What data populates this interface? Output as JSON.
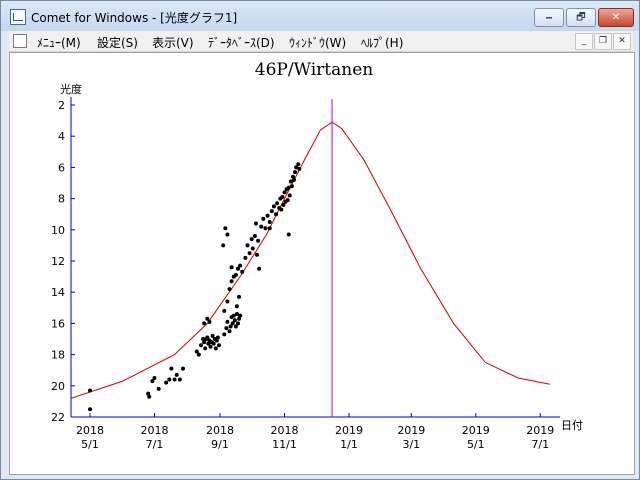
{
  "window": {
    "title": "Comet for Windows - [光度グラフ1]",
    "buttons": {
      "minimize": "🗕",
      "maximize": "🗗",
      "close": "✕"
    }
  },
  "menu": {
    "items": [
      "ﾒﾆｭｰ(M)",
      "設定(S)",
      "表示(V)",
      "ﾃﾞｰﾀﾍﾞｰｽ(D)",
      "ｳｨﾝﾄﾞｳ(W)",
      "ﾍﾙﾌﾟ(H)"
    ],
    "mdi_buttons": {
      "minimize": "_",
      "restore": "❐",
      "close": "✕"
    }
  },
  "colors": {
    "curve": "#cc0000",
    "vline": "#cc00cc",
    "axis": "#0000cc",
    "points": "#000000"
  },
  "chart_data": {
    "type": "scatter",
    "title": "46P/Wirtanen",
    "ylabel": "光度",
    "xlabel": "日付",
    "y_inverted": true,
    "ylim": [
      2,
      22
    ],
    "yticks": [
      2,
      4,
      6,
      8,
      10,
      12,
      14,
      16,
      18,
      20,
      22
    ],
    "xlim": [
      "2018-04-13",
      "2019-07-14"
    ],
    "xticks": [
      {
        "date": "2018-05-01",
        "year": "2018",
        "md": "5/1"
      },
      {
        "date": "2018-07-01",
        "year": "2018",
        "md": "7/1"
      },
      {
        "date": "2018-09-01",
        "year": "2018",
        "md": "9/1"
      },
      {
        "date": "2018-11-01",
        "year": "2018",
        "md": "11/1"
      },
      {
        "date": "2019-01-01",
        "year": "2019",
        "md": "1/1"
      },
      {
        "date": "2019-03-01",
        "year": "2019",
        "md": "3/1"
      },
      {
        "date": "2019-05-01",
        "year": "2019",
        "md": "5/1"
      },
      {
        "date": "2019-07-01",
        "year": "2019",
        "md": "7/1"
      }
    ],
    "marker_date": "2018-12-16",
    "grid": false,
    "predicted_curve": [
      [
        "2018-04-13",
        20.8
      ],
      [
        "2018-06-01",
        19.7
      ],
      [
        "2018-07-20",
        18.0
      ],
      [
        "2018-08-20",
        16.0
      ],
      [
        "2018-09-20",
        13.0
      ],
      [
        "2018-10-15",
        10.3
      ],
      [
        "2018-11-01",
        8.0
      ],
      [
        "2018-11-20",
        5.5
      ],
      [
        "2018-12-05",
        3.6
      ],
      [
        "2018-12-16",
        3.1
      ],
      [
        "2018-12-25",
        3.5
      ],
      [
        "2019-01-15",
        5.5
      ],
      [
        "2019-02-10",
        8.8
      ],
      [
        "2019-03-10",
        12.5
      ],
      [
        "2019-04-10",
        16.0
      ],
      [
        "2019-05-10",
        18.5
      ],
      [
        "2019-06-10",
        19.5
      ],
      [
        "2019-07-10",
        19.9
      ]
    ],
    "observations": [
      [
        "2018-05-01",
        20.3
      ],
      [
        "2018-05-01",
        21.5
      ],
      [
        "2018-06-25",
        20.5
      ],
      [
        "2018-06-26",
        20.7
      ],
      [
        "2018-06-29",
        19.7
      ],
      [
        "2018-07-01",
        19.5
      ],
      [
        "2018-07-05",
        20.2
      ],
      [
        "2018-07-12",
        19.8
      ],
      [
        "2018-07-15",
        19.6
      ],
      [
        "2018-07-17",
        18.9
      ],
      [
        "2018-07-20",
        19.6
      ],
      [
        "2018-07-22",
        19.3
      ],
      [
        "2018-07-25",
        19.6
      ],
      [
        "2018-07-28",
        18.9
      ],
      [
        "2018-08-10",
        17.8
      ],
      [
        "2018-08-12",
        18.0
      ],
      [
        "2018-08-14",
        17.4
      ],
      [
        "2018-08-16",
        17.0
      ],
      [
        "2018-08-17",
        17.2
      ],
      [
        "2018-08-18",
        17.6
      ],
      [
        "2018-08-19",
        17.0
      ],
      [
        "2018-08-20",
        16.9
      ],
      [
        "2018-08-21",
        17.3
      ],
      [
        "2018-08-22",
        17.1
      ],
      [
        "2018-08-23",
        17.5
      ],
      [
        "2018-08-24",
        17.2
      ],
      [
        "2018-08-25",
        16.8
      ],
      [
        "2018-08-26",
        17.3
      ],
      [
        "2018-08-27",
        17.0
      ],
      [
        "2018-08-28",
        17.6
      ],
      [
        "2018-08-29",
        17.1
      ],
      [
        "2018-08-30",
        16.9
      ],
      [
        "2018-08-31",
        17.4
      ],
      [
        "2018-08-17",
        16.0
      ],
      [
        "2018-08-20",
        15.7
      ],
      [
        "2018-08-22",
        15.9
      ],
      [
        "2018-09-05",
        16.7
      ],
      [
        "2018-09-07",
        16.3
      ],
      [
        "2018-09-08",
        15.9
      ],
      [
        "2018-09-10",
        16.5
      ],
      [
        "2018-09-11",
        16.2
      ],
      [
        "2018-09-12",
        15.6
      ],
      [
        "2018-09-13",
        16.0
      ],
      [
        "2018-09-14",
        15.5
      ],
      [
        "2018-09-15",
        15.8
      ],
      [
        "2018-09-16",
        16.2
      ],
      [
        "2018-09-17",
        15.4
      ],
      [
        "2018-09-18",
        16.0
      ],
      [
        "2018-09-19",
        15.7
      ],
      [
        "2018-09-20",
        15.5
      ],
      [
        "2018-09-05",
        15.2
      ],
      [
        "2018-09-08",
        14.6
      ],
      [
        "2018-09-10",
        13.8
      ],
      [
        "2018-09-12",
        13.3
      ],
      [
        "2018-09-14",
        13.0
      ],
      [
        "2018-09-16",
        12.9
      ],
      [
        "2018-09-18",
        12.5
      ],
      [
        "2018-09-20",
        12.3
      ],
      [
        "2018-09-22",
        12.7
      ],
      [
        "2018-09-19",
        14.3
      ],
      [
        "2018-09-17",
        14.9
      ],
      [
        "2018-09-04",
        11.0
      ],
      [
        "2018-09-06",
        9.9
      ],
      [
        "2018-09-08",
        10.3
      ],
      [
        "2018-09-12",
        12.4
      ],
      [
        "2018-09-25",
        11.8
      ],
      [
        "2018-09-27",
        11.0
      ],
      [
        "2018-09-29",
        11.5
      ],
      [
        "2018-10-01",
        10.6
      ],
      [
        "2018-10-02",
        11.2
      ],
      [
        "2018-10-04",
        10.4
      ],
      [
        "2018-10-06",
        11.6
      ],
      [
        "2018-10-07",
        10.7
      ],
      [
        "2018-10-08",
        12.5
      ],
      [
        "2018-10-10",
        9.8
      ],
      [
        "2018-10-12",
        9.3
      ],
      [
        "2018-10-14",
        9.9
      ],
      [
        "2018-10-16",
        9.1
      ],
      [
        "2018-10-18",
        9.5
      ],
      [
        "2018-10-20",
        8.8
      ],
      [
        "2018-10-22",
        8.5
      ],
      [
        "2018-10-24",
        9.0
      ],
      [
        "2018-10-25",
        8.3
      ],
      [
        "2018-10-27",
        8.6
      ],
      [
        "2018-10-28",
        8.0
      ],
      [
        "2018-10-29",
        8.7
      ],
      [
        "2018-10-30",
        7.9
      ],
      [
        "2018-10-31",
        8.4
      ],
      [
        "2018-11-01",
        7.6
      ],
      [
        "2018-11-02",
        8.2
      ],
      [
        "2018-11-03",
        7.4
      ],
      [
        "2018-11-04",
        8.1
      ],
      [
        "2018-11-05",
        7.3
      ],
      [
        "2018-11-06",
        7.8
      ],
      [
        "2018-11-07",
        6.9
      ],
      [
        "2018-11-08",
        7.2
      ],
      [
        "2018-11-09",
        6.6
      ],
      [
        "2018-11-10",
        6.8
      ],
      [
        "2018-11-11",
        6.3
      ],
      [
        "2018-11-12",
        6.0
      ],
      [
        "2018-11-14",
        5.8
      ],
      [
        "2018-11-15",
        6.1
      ],
      [
        "2018-11-05",
        10.3
      ],
      [
        "2018-10-05",
        9.6
      ],
      [
        "2018-10-18",
        9.9
      ]
    ]
  }
}
